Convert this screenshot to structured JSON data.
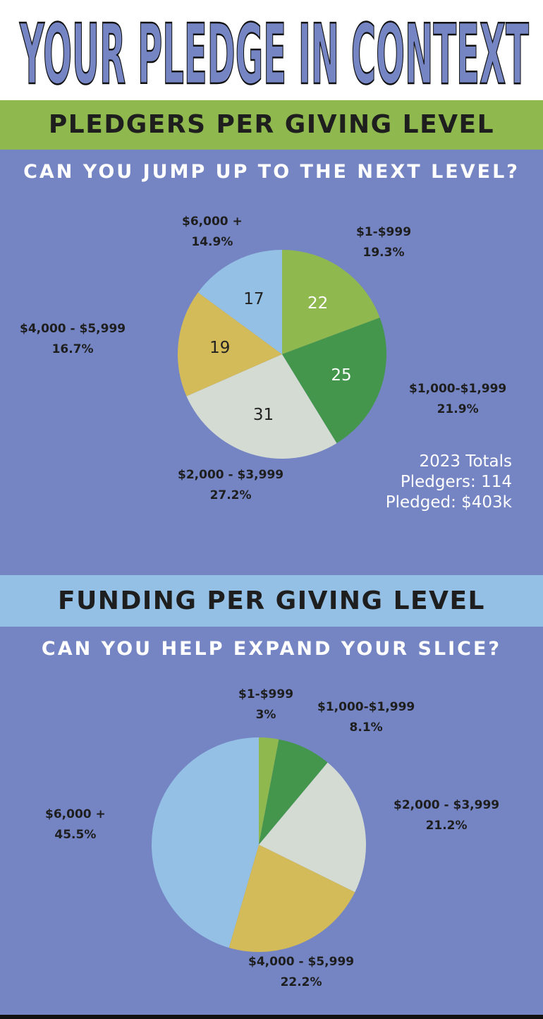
{
  "title": "YOUR PLEDGE IN CONTEXT",
  "section1": {
    "heading": "PLEDGERS PER GIVING LEVEL",
    "subheading": "CAN YOU JUMP UP TO THE NEXT LEVEL?",
    "totals": {
      "line1": "2023 Totals",
      "line2": "Pledgers: 114",
      "line3": "Pledged: $403k"
    }
  },
  "section2": {
    "heading": "FUNDING PER GIVING LEVEL",
    "subheading": "CAN YOU HELP EXPAND YOUR SLICE?"
  },
  "colors": {
    "light_green": "#8fb84e",
    "dark_green": "#43964b",
    "gray": "#d3dbd3",
    "yellow": "#d4bb5a",
    "light_blue": "#93c0e4",
    "background_blue": "#7585c4"
  },
  "chart_data": [
    {
      "type": "pie",
      "title": "PLEDGERS PER GIVING LEVEL",
      "categories": [
        "$1-$999",
        "$1,000-$1,999",
        "$2,000 - $3,999",
        "$4,000 - $5,999",
        "$6,000 +"
      ],
      "values": [
        22,
        25,
        31,
        19,
        17
      ],
      "value_labels": [
        "22",
        "25",
        "31",
        "19",
        "17"
      ],
      "percent_labels": [
        "19.3%",
        "21.9%",
        "27.2%",
        "16.7%",
        "14.9%"
      ],
      "colors": [
        "#8fb84e",
        "#43964b",
        "#d3dbd3",
        "#d4bb5a",
        "#93c0e4"
      ],
      "start": "12 o'clock",
      "direction": "clockwise"
    },
    {
      "type": "pie",
      "title": "FUNDING PER GIVING LEVEL",
      "categories": [
        "$1-$999",
        "$1,000-$1,999",
        "$2,000 - $3,999",
        "$4,000 - $5,999",
        "$6,000 +"
      ],
      "values": [
        3,
        8.1,
        21.2,
        22.2,
        45.5
      ],
      "percent_labels": [
        "3%",
        "8.1%",
        "21.2%",
        "22.2%",
        "45.5%"
      ],
      "colors": [
        "#8fb84e",
        "#43964b",
        "#d3dbd3",
        "#d4bb5a",
        "#93c0e4"
      ],
      "start": "12 o'clock",
      "direction": "clockwise"
    }
  ]
}
